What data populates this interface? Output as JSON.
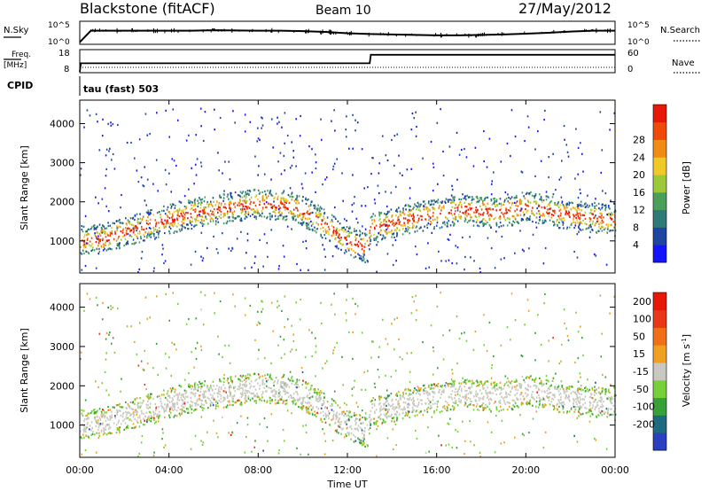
{
  "header": {
    "station": "Blackstone (fitACF)",
    "beam": "Beam 10",
    "date": "27/May/2012"
  },
  "labels": {
    "nsky": "N.Sky",
    "nsearch": "N.Search",
    "freq_top": "Freq.",
    "freq_unit": "[MHz]",
    "nave": "Nave",
    "cpid": "CPID",
    "cpid_value": "tau (fast) 503",
    "xlabel": "Time UT",
    "ylabel": "Slant Range [km]"
  },
  "chart_data": [
    {
      "type": "line",
      "name": "noise",
      "y_tick_labels": [
        "10^5",
        "10^0"
      ],
      "right_tick_labels": [
        "10^5",
        "10^0"
      ],
      "x": [
        0,
        0.5,
        1,
        2,
        3,
        4,
        5,
        6,
        7,
        8,
        9,
        10,
        11,
        12,
        13,
        14,
        15,
        16,
        17,
        18,
        19,
        20,
        21,
        22,
        23,
        24
      ],
      "values": [
        0.3,
        3.0,
        3.0,
        3.0,
        3.0,
        3.0,
        3.0,
        3.1,
        3.05,
        3.0,
        3.0,
        2.9,
        2.7,
        2.4,
        2.2,
        2.1,
        2.0,
        1.9,
        1.9,
        2.0,
        2.1,
        2.3,
        2.5,
        2.8,
        3.0,
        3.0
      ]
    },
    {
      "type": "line",
      "name": "frequency",
      "left_ticks": [
        8,
        18
      ],
      "right_ticks": [
        0,
        60
      ],
      "x": [
        0,
        0.05,
        13.0,
        13.05,
        24
      ],
      "values": [
        8,
        12,
        12,
        16,
        16
      ]
    },
    {
      "type": "heatmap",
      "title": "",
      "xlabel": "Time UT",
      "ylabel": "Slant Range [km]",
      "x_ticks": [
        "00:00",
        "04:00",
        "08:00",
        "12:00",
        "16:00",
        "20:00",
        "00:00"
      ],
      "xlim": [
        0,
        24
      ],
      "y_ticks": [
        1000,
        2000,
        3000,
        4000
      ],
      "ylim": [
        180,
        4600
      ],
      "colorbar": {
        "label": "Power [dB]",
        "ticks": [
          4,
          8,
          12,
          16,
          20,
          24,
          28
        ],
        "colors": [
          "#1414ff",
          "#1c46a0",
          "#2e7a76",
          "#4aa05a",
          "#9dc83a",
          "#f0c828",
          "#f08c14",
          "#f04a08",
          "#e81808"
        ]
      }
    },
    {
      "type": "heatmap",
      "title": "",
      "xlabel": "Time UT",
      "ylabel": "Slant Range [km]",
      "x_ticks": [
        "00:00",
        "04:00",
        "08:00",
        "12:00",
        "16:00",
        "20:00",
        "00:00"
      ],
      "xlim": [
        0,
        24
      ],
      "y_ticks": [
        1000,
        2000,
        3000,
        4000
      ],
      "ylim": [
        180,
        4600
      ],
      "colorbar": {
        "label": "Velocity [m s",
        "label_sup": "-1",
        "label_end": "]",
        "ticks": [
          "200",
          "100",
          "50",
          "15",
          "-15",
          "-50",
          "-100",
          "-200"
        ],
        "colors": [
          "#2a40c0",
          "#1e6a80",
          "#38a038",
          "#78d038",
          "#c8c8c0",
          "#f0a020",
          "#f07018",
          "#e83818",
          "#e81808"
        ]
      }
    }
  ]
}
